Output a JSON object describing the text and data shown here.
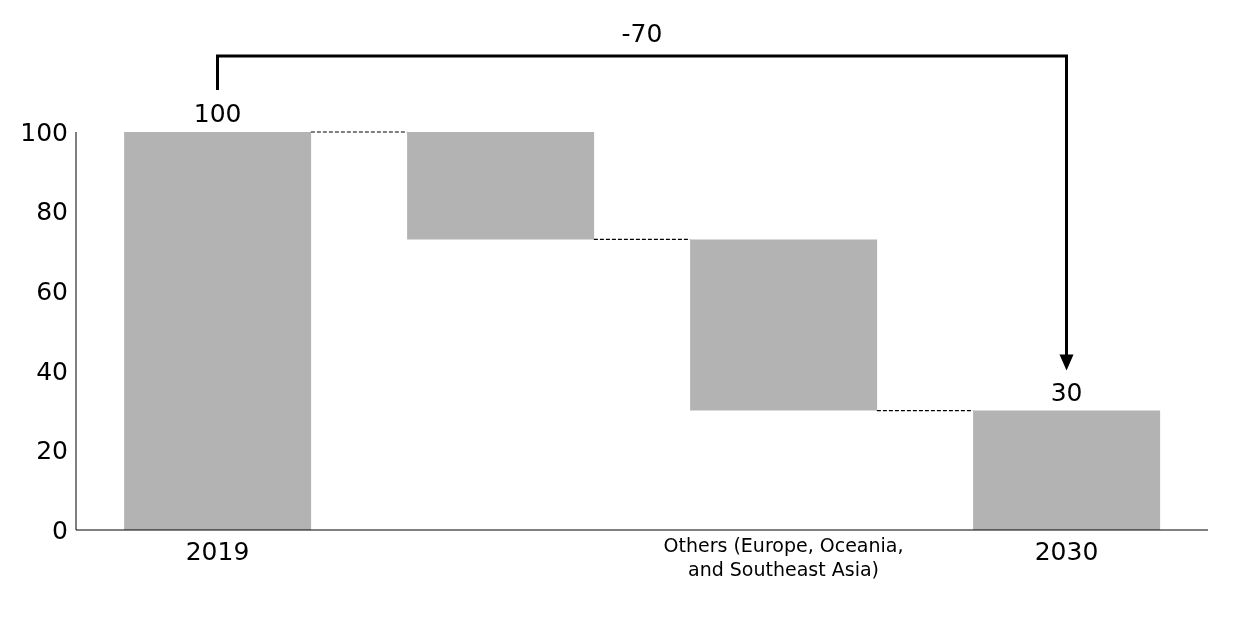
{
  "chart_data": {
    "type": "bar",
    "categories": [
      "2019",
      null,
      "Others (Europe, Oceania, and Southeast Asia)",
      "2030"
    ],
    "base": [
      0,
      73,
      30,
      0
    ],
    "values": [
      100,
      27,
      43,
      30
    ],
    "color": "#b3b3b3",
    "value_labels": [
      "100",
      null,
      null,
      "30"
    ],
    "ylim": [
      0,
      100
    ],
    "yticks": [
      0,
      20,
      40,
      60,
      80,
      100
    ],
    "grid": false,
    "legend": false,
    "annotations": [
      "-70"
    ]
  }
}
